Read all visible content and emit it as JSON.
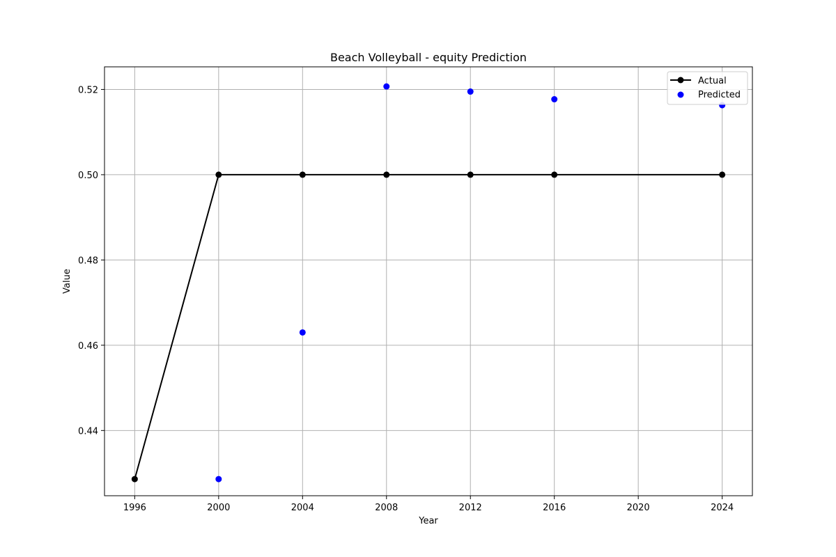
{
  "chart_data": {
    "type": "line",
    "title": "Beach Volleyball - equity Prediction",
    "xlabel": "Year",
    "ylabel": "Value",
    "xlim": [
      1994.56,
      2025.44
    ],
    "ylim": [
      0.4247,
      0.5253
    ],
    "xticks": [
      1996,
      2000,
      2004,
      2008,
      2012,
      2016,
      2020,
      2024
    ],
    "yticks": [
      0.44,
      0.46,
      0.48,
      0.5,
      0.52
    ],
    "ytick_labels": [
      "0.44",
      "0.46",
      "0.48",
      "0.50",
      "0.52"
    ],
    "grid": true,
    "legend_position": "top-right",
    "series": [
      {
        "name": "Actual",
        "kind": "line",
        "color": "#000000",
        "x": [
          1996,
          2000,
          2004,
          2008,
          2012,
          2016,
          2024
        ],
        "y": [
          0.4286,
          0.5,
          0.5,
          0.5,
          0.5,
          0.5,
          0.5
        ]
      },
      {
        "name": "Predicted",
        "kind": "scatter",
        "color": "#0000ff",
        "x": [
          2000,
          2004,
          2008,
          2012,
          2016,
          2024
        ],
        "y": [
          0.4286,
          0.463,
          0.5207,
          0.5195,
          0.5177,
          0.5163
        ]
      }
    ]
  }
}
